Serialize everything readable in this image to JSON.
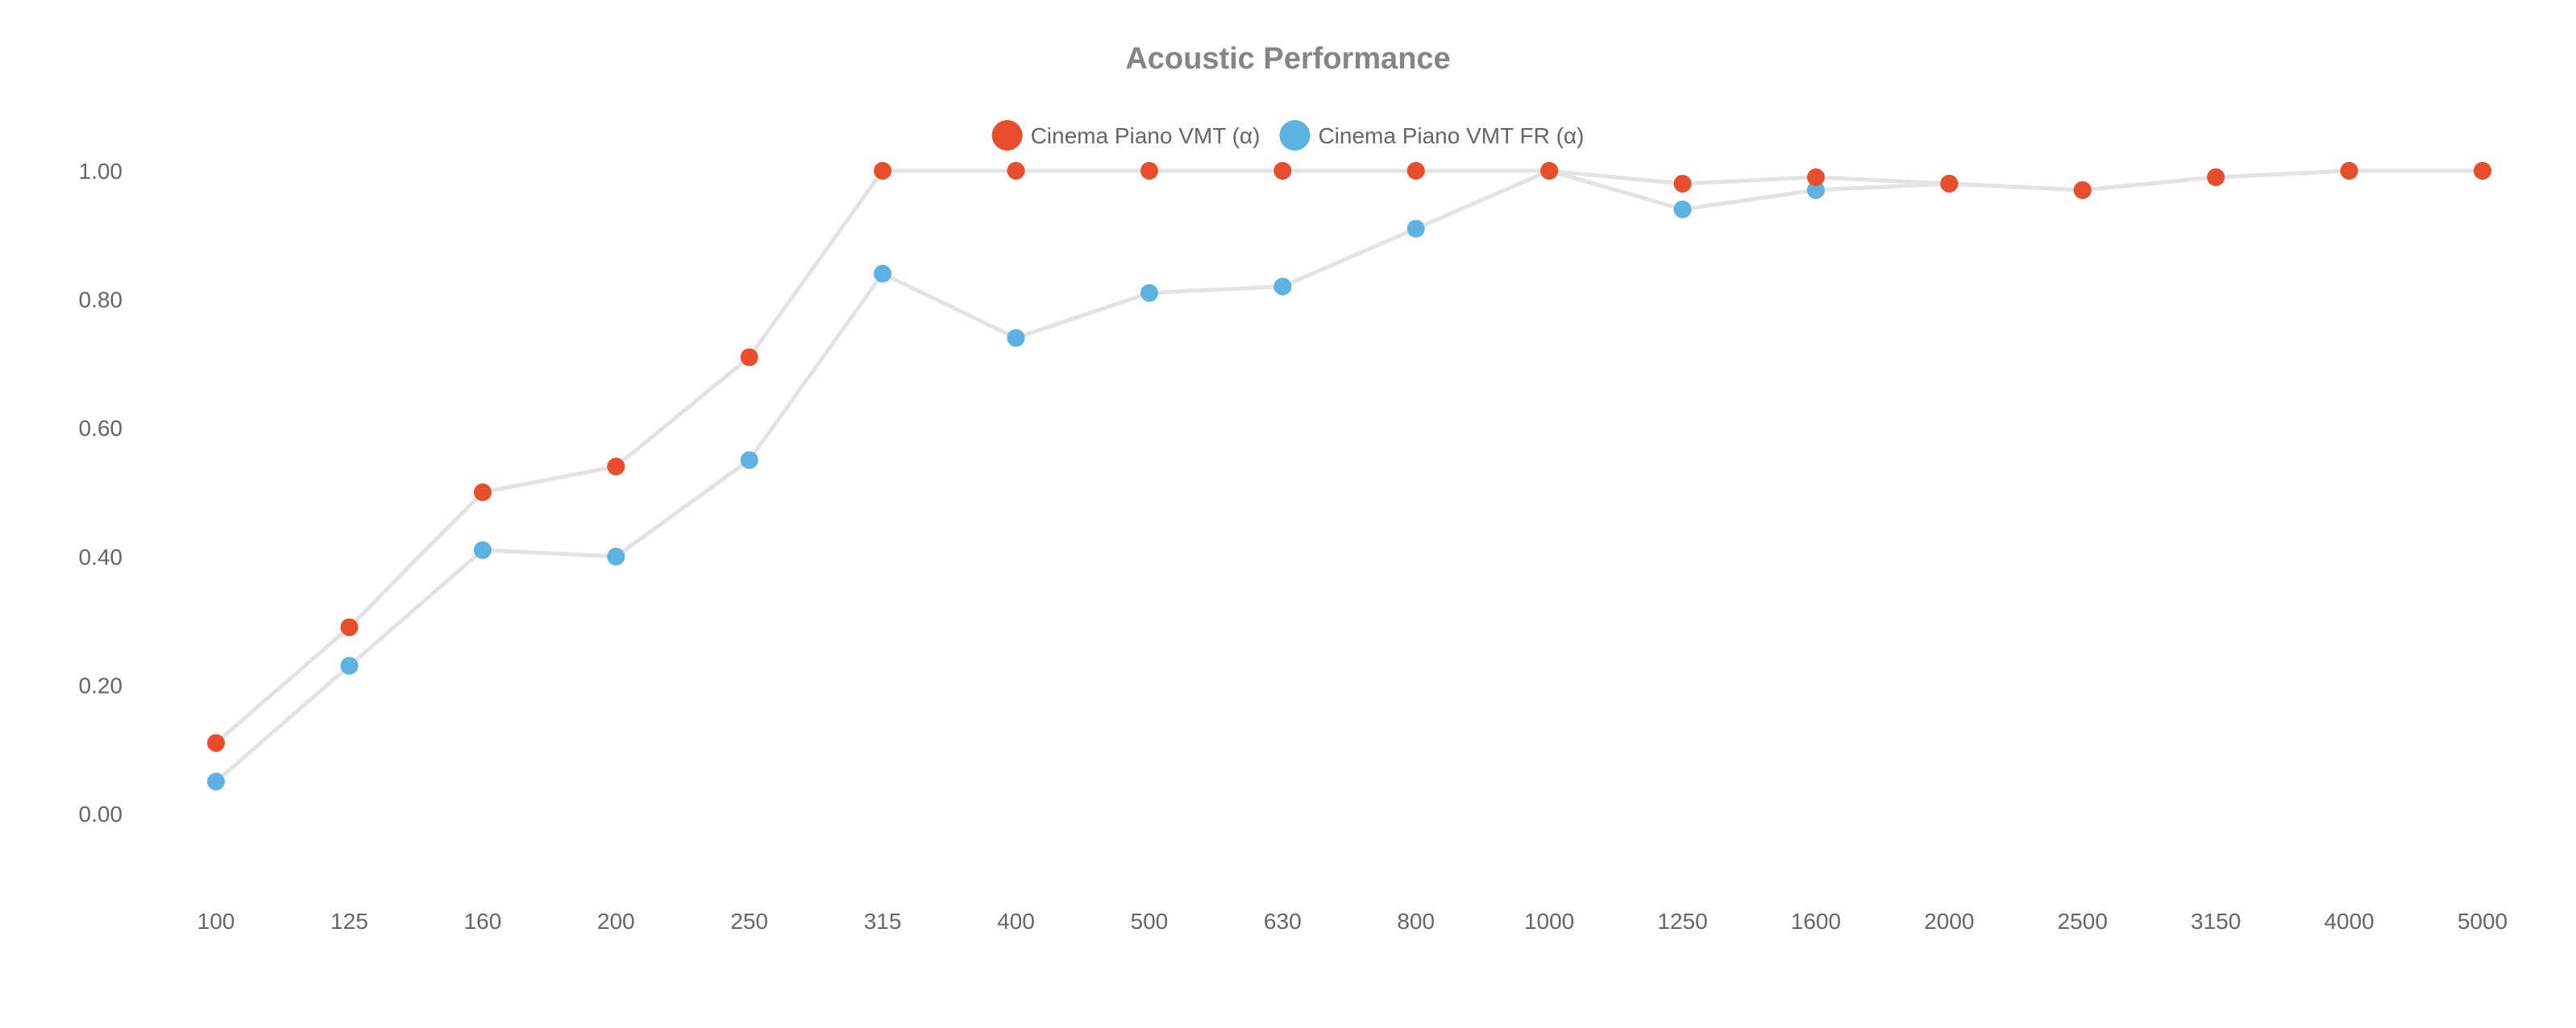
{
  "chart_data": {
    "type": "line",
    "title": "Acoustic Performance",
    "xlabel": "",
    "ylabel": "",
    "categories": [
      "100",
      "125",
      "160",
      "200",
      "250",
      "315",
      "400",
      "500",
      "630",
      "800",
      "1000",
      "1250",
      "1600",
      "2000",
      "2500",
      "3150",
      "4000",
      "5000"
    ],
    "ylim": [
      -0.1,
      1.1
    ],
    "yticks": [
      "0.00",
      "0.20",
      "0.40",
      "0.60",
      "0.80",
      "1.00"
    ],
    "ytick_values": [
      0,
      0.2,
      0.4,
      0.6,
      0.8,
      1.0
    ],
    "grid": false,
    "legend_position": "top-center",
    "line_color": "#e3e3e3",
    "series": [
      {
        "name": "Cinema Piano VMT (α)",
        "color": "#e84e2b",
        "values": [
          0.11,
          0.29,
          0.5,
          0.54,
          0.71,
          1.0,
          1.0,
          1.0,
          1.0,
          1.0,
          1.0,
          0.98,
          0.99,
          0.98,
          0.97,
          0.99,
          1.0,
          1.0
        ]
      },
      {
        "name": "Cinema Piano VMT FR  (α)",
        "color": "#5cb2e1",
        "values": [
          0.05,
          0.23,
          0.41,
          0.4,
          0.55,
          0.84,
          0.74,
          0.81,
          0.82,
          0.91,
          1.0,
          0.94,
          0.97,
          0.98,
          0.97,
          0.99,
          1.0,
          1.0
        ]
      }
    ]
  }
}
